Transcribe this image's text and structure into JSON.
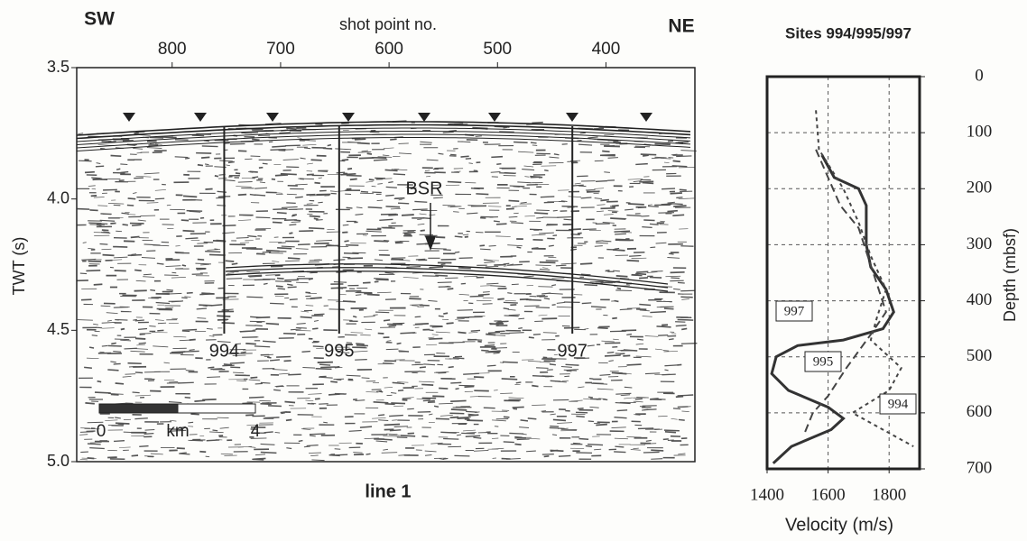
{
  "chart_data": [
    {
      "type": "seismic",
      "title": "line 1",
      "x_label": "shot point no.",
      "y_label": "TWT (s)",
      "xlim": [
        888,
        318
      ],
      "xticks": [
        800,
        700,
        600,
        500,
        400
      ],
      "ylim": [
        3.5,
        5.0
      ],
      "yticks": [
        {
          "value": 3.5,
          "label": "3.5"
        },
        {
          "value": 4,
          "label": "4.0"
        },
        {
          "value": 4.5,
          "label": "4.5"
        },
        {
          "value": 5,
          "label": "5.0"
        }
      ],
      "annotations": {
        "left": "SW",
        "right": "NE",
        "reflector": "BSR"
      },
      "sites": [
        {
          "label": "994",
          "shot_point": 752
        },
        {
          "label": "995",
          "shot_point": 646
        },
        {
          "label": "997",
          "shot_point": 431
        }
      ],
      "scale_bar": [
        "0",
        "km",
        "4"
      ]
    },
    {
      "type": "line",
      "title": "Sites 994/995/997",
      "x_label": "Velocity (m/s)",
      "y_label": "Depth (mbsf)",
      "xlim": [
        1400,
        1900
      ],
      "xticks": [
        1400,
        1600,
        1800
      ],
      "ylim": [
        0,
        700
      ],
      "yticks": [
        0,
        100,
        200,
        300,
        400,
        500,
        600,
        700
      ],
      "grid": true,
      "series": [
        {
          "name": "997",
          "color": "#333333",
          "dash": "solid",
          "depth": [
            140,
            180,
            200,
            230,
            300,
            340,
            380,
            420,
            450,
            470,
            480,
            500,
            530,
            560,
            590,
            610,
            630,
            660,
            690
          ],
          "values": [
            1580,
            1620,
            1700,
            1725,
            1725,
            1740,
            1790,
            1815,
            1780,
            1650,
            1500,
            1430,
            1415,
            1470,
            1600,
            1650,
            1610,
            1480,
            1420
          ]
        },
        {
          "name": "995",
          "color": "#444444",
          "dash": "dashed",
          "depth": [
            130,
            180,
            230,
            270,
            320,
            370,
            420,
            460,
            520,
            570,
            600,
            640
          ],
          "values": [
            1560,
            1600,
            1640,
            1700,
            1730,
            1760,
            1790,
            1740,
            1660,
            1600,
            1550,
            1520
          ]
        },
        {
          "name": "994",
          "color": "#444444",
          "dash": "dotted",
          "depth": [
            60,
            130,
            200,
            260,
            320,
            380,
            430,
            470,
            520,
            560,
            600,
            660
          ],
          "values": [
            1560,
            1570,
            1650,
            1700,
            1740,
            1790,
            1760,
            1740,
            1840,
            1800,
            1680,
            1880
          ]
        }
      ]
    }
  ]
}
